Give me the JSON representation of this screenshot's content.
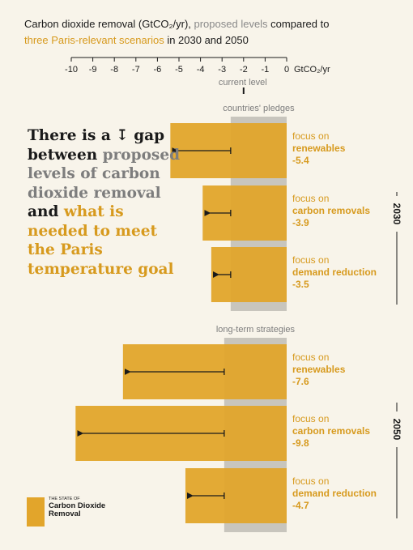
{
  "title": {
    "part1": "Carbon dioxide removal (GtCO₂/yr), ",
    "part2": "proposed levels",
    "part3": " compared to",
    "part4": "three Paris-relevant scenarios",
    "part5": " in 2030 and 2050"
  },
  "headline": {
    "part1": "There is a ",
    "arrow": "↧",
    "part2": " gap between ",
    "part3": "proposed levels of carbon dioxide removal",
    "part4": " and ",
    "part5": "what is needed to meet the Paris temperature goal"
  },
  "logo": {
    "line1": "THE STATE OF",
    "line2": "Carbon Dioxide Removal"
  },
  "chart_data": {
    "type": "bar",
    "orientation": "horizontal",
    "xlim": [
      -10,
      0
    ],
    "xticks": [
      -10,
      -9,
      -8,
      -7,
      -6,
      -5,
      -4,
      -3,
      -2,
      -1,
      0
    ],
    "unit": "GtCO₂/yr",
    "current_level": {
      "label": "current level",
      "value": -2
    },
    "groups": [
      {
        "year": "2030",
        "reference_label": "countries' pledges",
        "reference_value": -2.6,
        "bars": [
          {
            "line1": "focus on",
            "line2": "renewables",
            "value": -5.4,
            "value_label": "-5.4"
          },
          {
            "line1": "focus on",
            "line2": "carbon removals",
            "value": -3.9,
            "value_label": "-3.9"
          },
          {
            "line1": "focus on",
            "line2": "demand reduction",
            "value": -3.5,
            "value_label": "-3.5"
          }
        ]
      },
      {
        "year": "2050",
        "reference_label": "long-term strategies",
        "reference_value": -2.9,
        "bars": [
          {
            "line1": "focus on",
            "line2": "renewables",
            "value": -7.6,
            "value_label": "-7.6"
          },
          {
            "line1": "focus on",
            "line2": "carbon removals",
            "value": -9.8,
            "value_label": "-9.8"
          },
          {
            "line1": "focus on",
            "line2": "demand reduction",
            "value": -4.7,
            "value_label": "-4.7"
          }
        ]
      }
    ]
  },
  "colors": {
    "bar": "#e2a52b",
    "reference": "#c8c5bd",
    "gold_text": "#d79a1e",
    "grey_text": "#7d7d7d",
    "background": "#f8f4ea"
  }
}
